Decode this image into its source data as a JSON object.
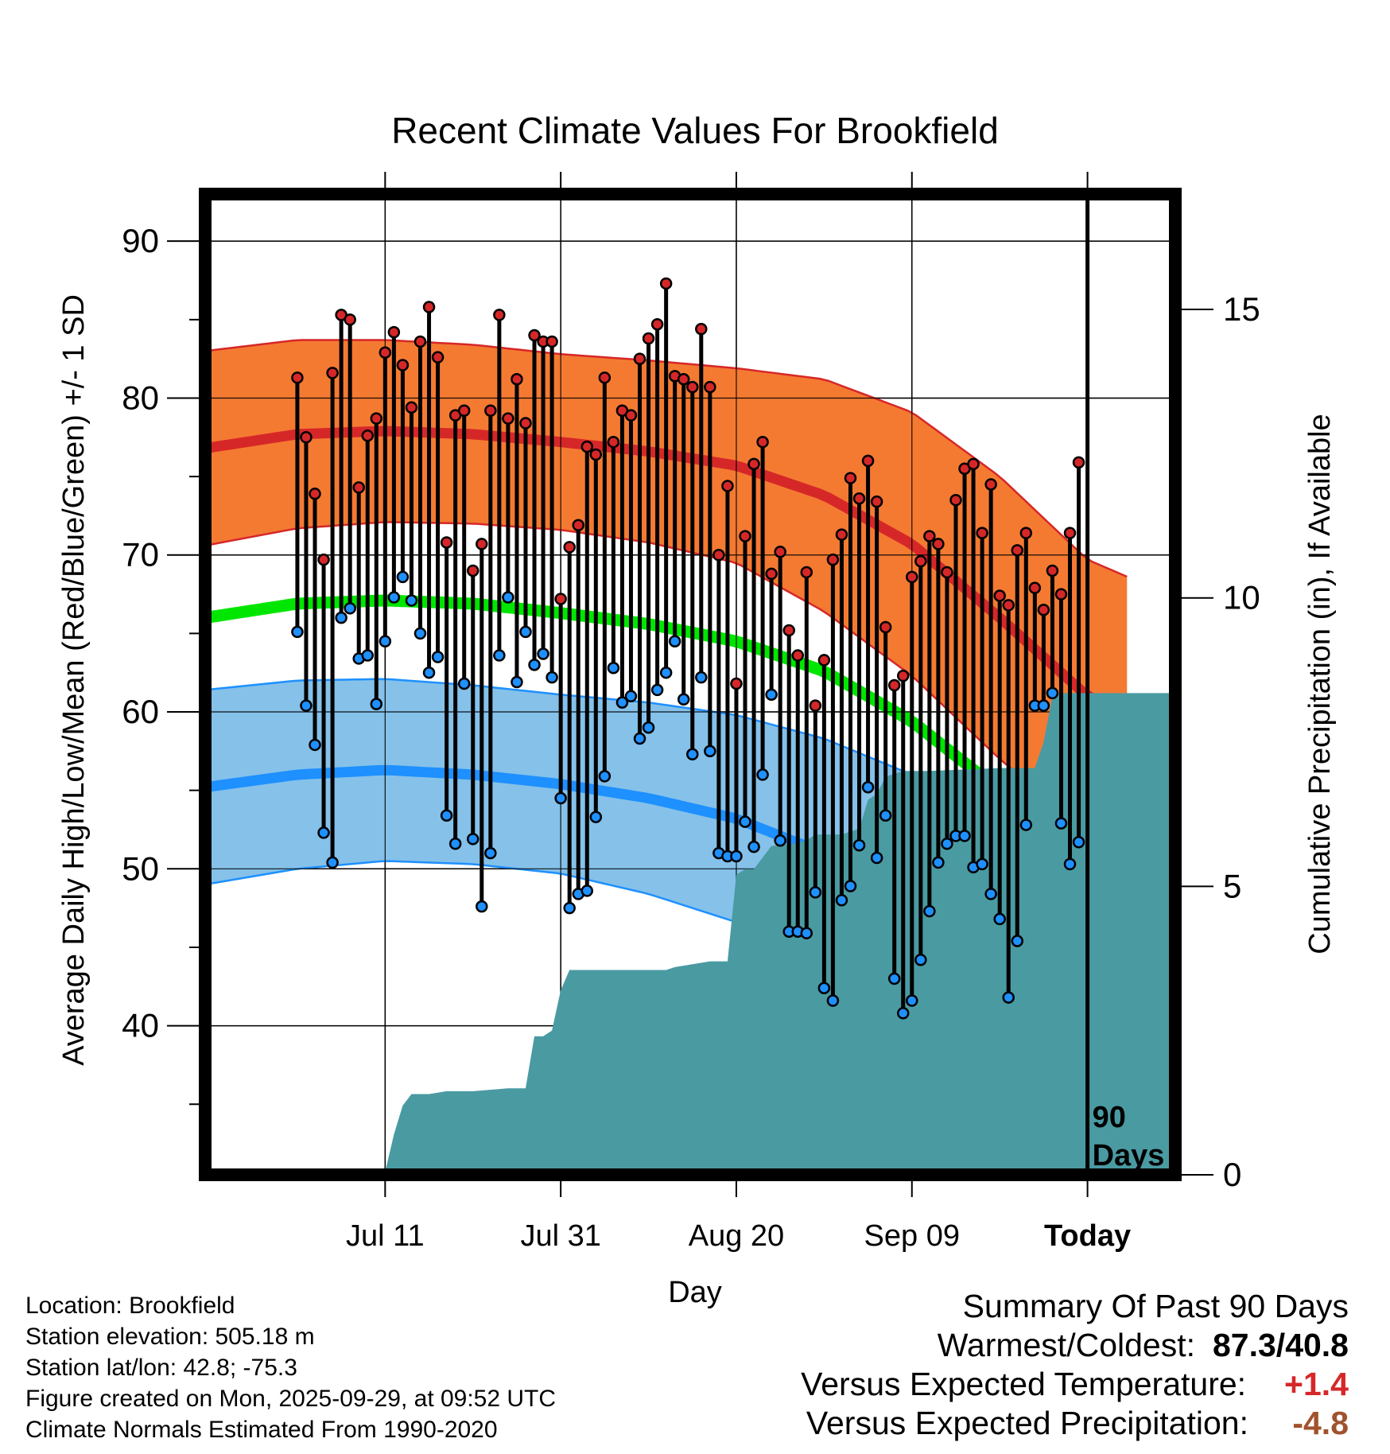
{
  "chart_data": {
    "type": "line",
    "title": "Recent Climate Values For Brookfield",
    "xlabel": "Day",
    "ylabel": "Average Daily High/Low/Mean (Red/Blue/Green) +/- 1 SD",
    "y2label": "Cumulative Precipitation (in), If Available",
    "ylim": [
      30.5,
      93
    ],
    "y2lim": [
      0,
      17
    ],
    "y_ticks": [
      40,
      50,
      60,
      70,
      80,
      90
    ],
    "y2_ticks": [
      0,
      5,
      10,
      15
    ],
    "x_tick_labels": [
      {
        "day": 10,
        "label": "Jul 11"
      },
      {
        "day": 30,
        "label": "Jul 31"
      },
      {
        "day": 50,
        "label": "Aug 20"
      },
      {
        "day": 70,
        "label": "Sep 09"
      },
      {
        "day": 90,
        "label": "Today"
      }
    ],
    "xlim": [
      -10.5,
      100
    ],
    "start_date": "Jul 01",
    "marker_day": 90,
    "marker_label": [
      "90",
      "Days"
    ],
    "high": [
      81.3,
      77.5,
      73.9,
      69.7,
      81.6,
      85.3,
      85.0,
      74.3,
      77.6,
      78.7,
      82.9,
      84.2,
      82.1,
      79.4,
      83.6,
      85.8,
      82.6,
      70.8,
      78.9,
      79.2,
      69.0,
      70.7,
      79.2,
      85.3,
      78.7,
      81.2,
      78.4,
      84.0,
      83.6,
      83.6,
      67.2,
      70.5,
      71.9,
      76.9,
      76.4,
      81.3,
      77.2,
      79.2,
      78.9,
      82.5,
      83.8,
      84.7,
      87.3,
      81.4,
      81.2,
      80.7,
      84.4,
      80.7,
      70.0,
      74.4,
      61.8,
      71.2,
      75.8,
      77.2,
      68.8,
      70.2,
      65.2,
      63.6,
      68.9,
      60.4,
      63.3,
      69.7,
      71.3,
      74.9,
      73.6,
      76.0,
      73.4,
      65.4,
      61.7,
      62.3,
      68.6,
      69.6,
      71.2,
      70.7,
      68.9,
      73.5,
      75.5,
      75.8,
      71.4,
      74.5,
      67.4,
      66.8,
      70.3,
      71.4,
      67.9,
      66.5,
      69.0,
      67.5,
      71.4,
      75.9
    ],
    "low": [
      65.1,
      60.4,
      57.9,
      52.3,
      50.4,
      66.0,
      66.6,
      63.4,
      63.6,
      60.5,
      64.5,
      67.3,
      68.6,
      67.1,
      65.0,
      62.5,
      63.5,
      53.4,
      51.6,
      61.8,
      51.9,
      47.6,
      51.0,
      63.6,
      67.3,
      61.9,
      65.1,
      63.0,
      63.7,
      62.2,
      54.5,
      47.5,
      48.4,
      48.6,
      53.3,
      55.9,
      62.8,
      60.6,
      61.0,
      58.3,
      59.0,
      61.4,
      62.5,
      64.5,
      60.8,
      57.3,
      62.2,
      57.5,
      51.0,
      50.8,
      50.8,
      53.0,
      51.4,
      56.0,
      61.1,
      51.8,
      46.0,
      46.0,
      45.9,
      48.5,
      42.4,
      41.6,
      48.0,
      48.9,
      51.5,
      55.2,
      50.7,
      53.4,
      43.0,
      40.8,
      41.6,
      44.2,
      47.3,
      50.4,
      51.6,
      52.1,
      52.1,
      50.1,
      50.3,
      48.4,
      46.8,
      41.8,
      45.4,
      52.8,
      60.4,
      60.4,
      61.2,
      52.9,
      50.3,
      51.7
    ],
    "precip_cumulative": [
      [
        -11.0,
        0.0
      ],
      [
        0.0,
        0.0
      ],
      [
        9.0,
        0.0
      ],
      [
        10.0,
        0.05
      ],
      [
        11.0,
        0.7
      ],
      [
        12.0,
        1.2
      ],
      [
        13.0,
        1.4
      ],
      [
        15.0,
        1.4
      ],
      [
        17.0,
        1.45
      ],
      [
        20.0,
        1.45
      ],
      [
        24.0,
        1.5
      ],
      [
        26.0,
        1.5
      ],
      [
        27.0,
        2.4
      ],
      [
        28.0,
        2.4
      ],
      [
        29.0,
        2.5
      ],
      [
        30.0,
        3.2
      ],
      [
        31.0,
        3.55
      ],
      [
        33.0,
        3.55
      ],
      [
        42.0,
        3.55
      ],
      [
        43.0,
        3.6
      ],
      [
        45.0,
        3.65
      ],
      [
        47.0,
        3.7
      ],
      [
        49.0,
        3.7
      ],
      [
        50.0,
        5.2
      ],
      [
        51.0,
        5.3
      ],
      [
        52.0,
        5.3
      ],
      [
        53.0,
        5.5
      ],
      [
        54.0,
        5.7
      ],
      [
        57.0,
        5.75
      ],
      [
        58.0,
        5.8
      ],
      [
        59.0,
        5.9
      ],
      [
        60.0,
        5.9
      ],
      [
        62.0,
        5.9
      ],
      [
        63.0,
        5.95
      ],
      [
        64.0,
        6.0
      ],
      [
        65.0,
        6.5
      ],
      [
        66.0,
        6.6
      ],
      [
        67.0,
        6.9
      ],
      [
        68.0,
        6.95
      ],
      [
        69.0,
        7.0
      ],
      [
        72.0,
        7.0
      ],
      [
        80.0,
        7.05
      ],
      [
        84.0,
        7.05
      ],
      [
        85.0,
        7.5
      ],
      [
        86.0,
        8.3
      ],
      [
        87.0,
        8.35
      ],
      [
        100.0,
        8.35
      ]
    ],
    "normals": {
      "high_mean": [
        [
          -10.5,
          76.8
        ],
        [
          0,
          77.7
        ],
        [
          10,
          77.9
        ],
        [
          20,
          77.7
        ],
        [
          30,
          77.2
        ],
        [
          40,
          76.6
        ],
        [
          50,
          75.7
        ],
        [
          60,
          73.8
        ],
        [
          70,
          70.7
        ],
        [
          80,
          66.0
        ],
        [
          90,
          61.0
        ],
        [
          95,
          59.8
        ]
      ],
      "high_sd": [
        [
          -10.5,
          6.2
        ],
        [
          0,
          6.0
        ],
        [
          10,
          5.8
        ],
        [
          20,
          5.7
        ],
        [
          30,
          5.6
        ],
        [
          40,
          5.8
        ],
        [
          50,
          6.2
        ],
        [
          60,
          7.4
        ],
        [
          70,
          8.4
        ],
        [
          80,
          9.0
        ],
        [
          90,
          8.7
        ],
        [
          95,
          8.7
        ]
      ],
      "low_mean": [
        [
          -10.5,
          55.2
        ],
        [
          0,
          56.0
        ],
        [
          10,
          56.3
        ],
        [
          20,
          56.0
        ],
        [
          30,
          55.4
        ],
        [
          40,
          54.5
        ],
        [
          50,
          53.2
        ],
        [
          60,
          51.0
        ],
        [
          70,
          48.0
        ],
        [
          80,
          44.0
        ],
        [
          90,
          39.0
        ],
        [
          95,
          37.5
        ]
      ],
      "low_sd": [
        [
          -10.5,
          6.2
        ],
        [
          0,
          6.0
        ],
        [
          10,
          5.8
        ],
        [
          20,
          5.7
        ],
        [
          30,
          5.7
        ],
        [
          40,
          6.1
        ],
        [
          50,
          6.6
        ],
        [
          60,
          7.3
        ],
        [
          70,
          8.0
        ],
        [
          80,
          8.6
        ],
        [
          90,
          9.2
        ],
        [
          95,
          9.4
        ]
      ],
      "mean": [
        [
          -10.5,
          66.0
        ],
        [
          0,
          66.9
        ],
        [
          10,
          67.1
        ],
        [
          20,
          66.9
        ],
        [
          30,
          66.3
        ],
        [
          40,
          65.6
        ],
        [
          50,
          64.5
        ],
        [
          60,
          62.6
        ],
        [
          70,
          59.4
        ],
        [
          80,
          55.0
        ],
        [
          90,
          50.5
        ],
        [
          95,
          49.6
        ]
      ]
    },
    "colors": {
      "high_band": "#f47a32",
      "high_line": "#d62728",
      "low_band": "#85c1e9",
      "low_line": "#1e90ff",
      "mean_line": "#00e600",
      "precip_fill": "#4a9aa2",
      "high_marker": "#d62728",
      "low_marker": "#1e90ff"
    }
  },
  "info": {
    "location": "Location: Brookfield",
    "elevation": "Station elevation: 505.18 m",
    "latlon": "Station lat/lon: 42.8; -75.3",
    "created": "Figure created on Mon, 2025-09-29, at 09:52 UTC",
    "normals": "Climate Normals Estimated From 1990-2020"
  },
  "summary": {
    "title": "Summary Of Past 90 Days",
    "warmest_coldest_label": "Warmest/Coldest:",
    "warmest_coldest_value": "87.3/40.8",
    "temp_label": "Versus Expected Temperature:",
    "temp_value": "+1.4",
    "temp_color": "#d62728",
    "precip_label": "Versus Expected Precipitation:",
    "precip_value": "-4.8",
    "precip_color": "#a0522d"
  }
}
